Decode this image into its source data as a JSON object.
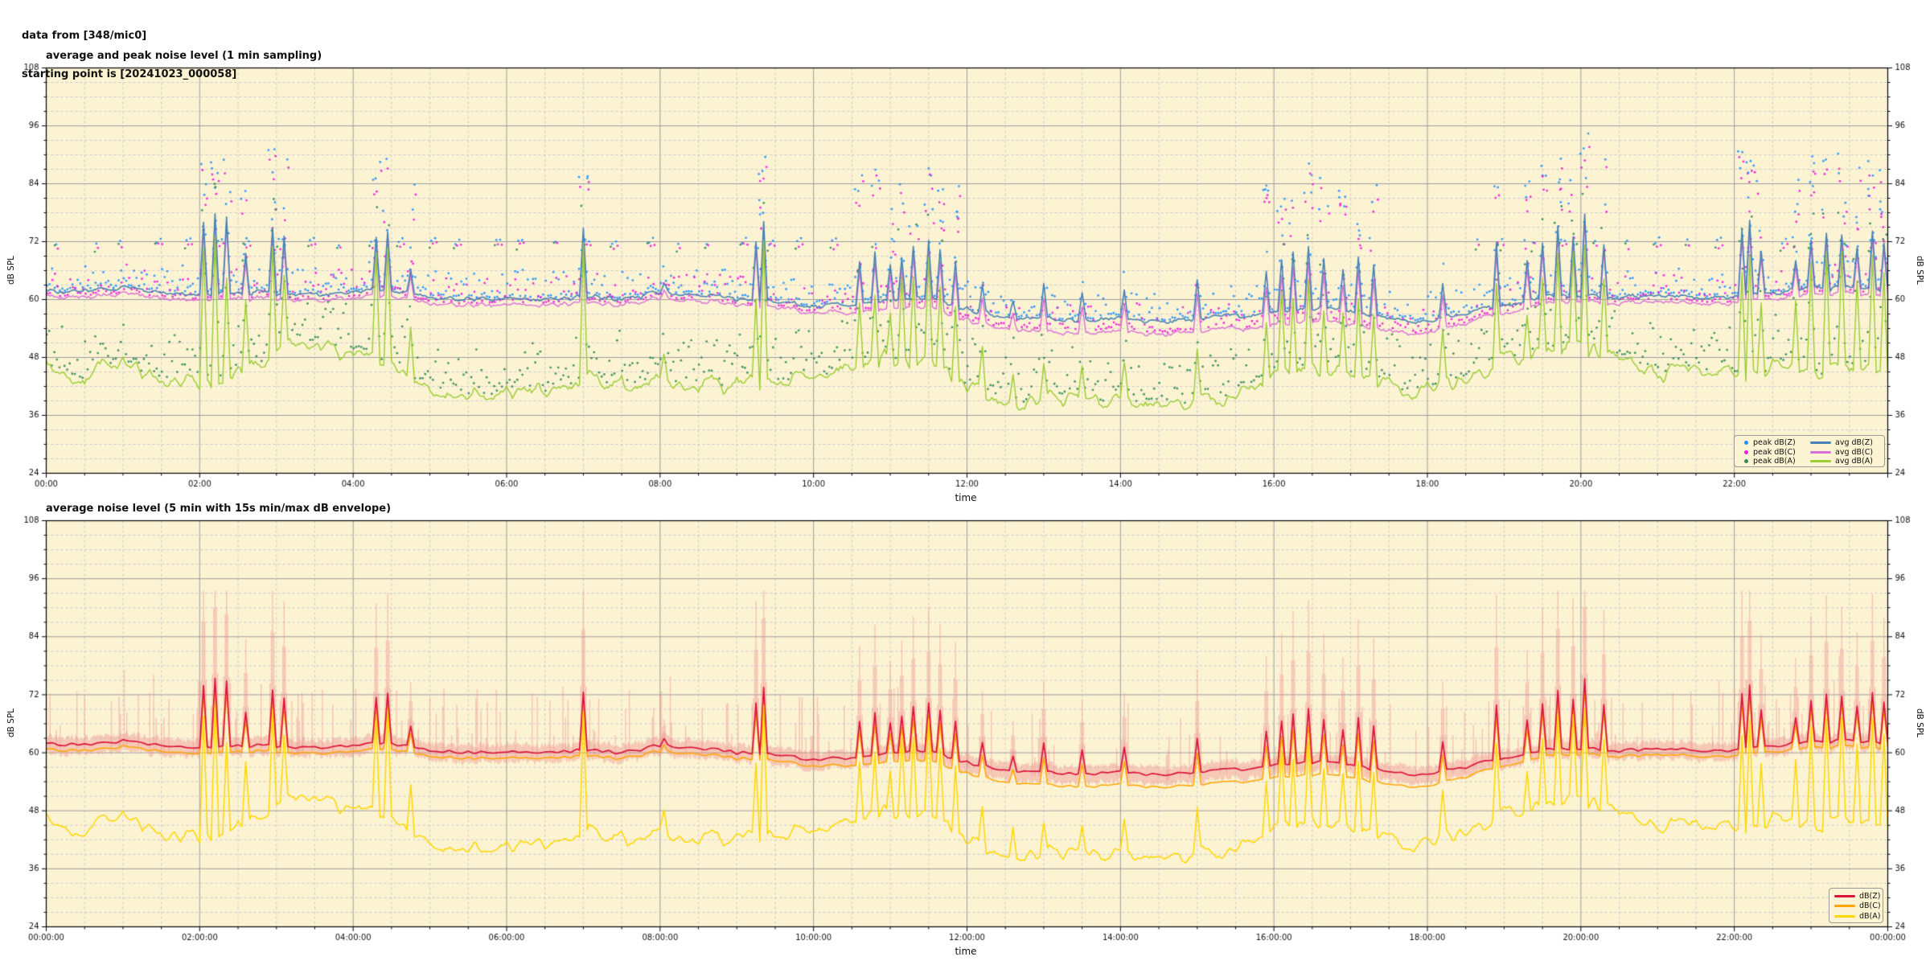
{
  "header": {
    "line1": "data from [348/mic0]",
    "line2": "starting point is [20241023_000058]"
  },
  "colors": {
    "figure_background": "#ffffff",
    "plot_background": "#fcf3d3",
    "grid_major": "#9e9e9e",
    "grid_minor": "#cbcbcb",
    "spine": "#000000",
    "tick_text": "#111111",
    "envelope": "#ee9090"
  },
  "chart_data": [
    {
      "type": "line+scatter",
      "title": "average and peak noise level (1 min sampling)",
      "xlabel": "time",
      "ylabel": "dB SPL",
      "ylim": [
        24,
        108
      ],
      "ytick_labels": [
        "108",
        "96",
        "84",
        "72",
        "60",
        "48",
        "36",
        "24"
      ],
      "ytick_major_step_db": 12,
      "ytick_minor_step_db": 3,
      "x_range_hours": [
        0,
        24
      ],
      "xtick_major_step_h": 2,
      "xtick_minor_step_h": 0.5,
      "xtick_labels": [
        "00:00",
        "02:00",
        "04:00",
        "06:00",
        "08:00",
        "10:00",
        "12:00",
        "14:00",
        "16:00",
        "18:00",
        "20:00",
        "22:00"
      ],
      "grid": "major solid, minor dashed",
      "legend_position": "lower right, 2 columns",
      "series": [
        {
          "name": "peak dB(Z)",
          "type": "scatter",
          "color": "#1e90ff"
        },
        {
          "name": "peak dB(C)",
          "type": "scatter",
          "color": "#f01ae0"
        },
        {
          "name": "peak dB(A)",
          "type": "scatter",
          "color": "#2e8b57"
        },
        {
          "name": "avg dB(Z)",
          "type": "line",
          "color": "#4682b4"
        },
        {
          "name": "avg dB(C)",
          "type": "line",
          "color": "#da70d6"
        },
        {
          "name": "avg dB(A)",
          "type": "line",
          "color": "#9acd32"
        }
      ],
      "sampling_note": "dense 1-min series; values below are 30-min baseline estimates read from gridlines plus discrete spike events",
      "baselines": {
        "t_step_h": 0.5,
        "avg_dbz": [
          62.0,
          61.5,
          62.5,
          61.5,
          61.0,
          61.5,
          61.5,
          61.0,
          61.5,
          62.0,
          60.5,
          60.0,
          60.0,
          60.2,
          60.5,
          60.0,
          61.5,
          61.0,
          60.0,
          59.5,
          58.5,
          59.0,
          60.0,
          60.5,
          58.0,
          56.5,
          56.0,
          55.5,
          56.0,
          55.5,
          56.0,
          56.5,
          57.5,
          58.0,
          57.5,
          56.0,
          55.5,
          57.0,
          59.0,
          60.5,
          61.0,
          60.5,
          60.8,
          60.5,
          60.5,
          61.5,
          62.0,
          62.5,
          62.0
        ],
        "avg_dbc": [
          60.8,
          60.3,
          61.3,
          60.3,
          59.8,
          60.3,
          60.3,
          59.8,
          60.3,
          60.8,
          59.3,
          58.8,
          58.8,
          59.0,
          59.3,
          58.8,
          60.3,
          59.8,
          58.8,
          58.3,
          57.2,
          57.4,
          58.2,
          58.5,
          55.8,
          54.0,
          53.4,
          52.9,
          53.4,
          52.9,
          53.4,
          53.9,
          54.9,
          55.4,
          54.9,
          53.4,
          53.0,
          55.0,
          57.4,
          59.2,
          59.8,
          59.3,
          59.6,
          59.3,
          59.3,
          60.3,
          60.8,
          61.3,
          60.8
        ],
        "avg_dba": [
          46,
          44,
          47,
          43,
          42,
          44,
          50,
          51,
          47,
          48,
          41,
          40.5,
          40.5,
          41,
          44,
          42,
          43,
          42.5,
          42,
          43,
          44,
          46,
          48,
          47,
          42,
          39.5,
          39,
          38.5,
          39,
          38.5,
          39,
          40,
          44,
          45,
          44,
          42,
          41,
          44,
          47,
          49,
          50,
          47,
          45,
          45,
          44,
          46,
          45,
          46,
          45
        ]
      },
      "spikes": {
        "format": [
          "t_hours",
          "peak_dbz",
          "peak_dba"
        ],
        "events": [
          [
            2.05,
            76,
            70
          ],
          [
            2.2,
            78,
            74
          ],
          [
            2.35,
            77,
            64
          ],
          [
            2.6,
            70,
            60
          ],
          [
            2.95,
            75,
            72
          ],
          [
            3.1,
            73,
            65
          ],
          [
            4.3,
            73,
            70
          ],
          [
            4.45,
            74,
            72
          ],
          [
            4.75,
            66,
            56
          ],
          [
            7.0,
            75,
            73
          ],
          [
            8.05,
            63,
            48
          ],
          [
            9.25,
            72,
            60
          ],
          [
            9.35,
            76,
            74
          ],
          [
            10.6,
            68,
            60
          ],
          [
            10.8,
            70,
            62
          ],
          [
            11.0,
            67,
            58
          ],
          [
            11.15,
            69,
            64
          ],
          [
            11.3,
            71,
            66
          ],
          [
            11.5,
            72,
            68
          ],
          [
            11.65,
            70,
            62
          ],
          [
            11.85,
            68,
            60
          ],
          [
            12.2,
            63,
            50
          ],
          [
            12.6,
            60,
            46
          ],
          [
            13.0,
            63,
            45
          ],
          [
            13.5,
            61,
            44
          ],
          [
            14.05,
            62,
            46
          ],
          [
            15.0,
            64,
            48
          ],
          [
            15.9,
            66,
            56
          ],
          [
            16.1,
            68,
            60
          ],
          [
            16.25,
            70,
            62
          ],
          [
            16.45,
            71,
            63
          ],
          [
            16.65,
            68,
            58
          ],
          [
            16.9,
            66,
            55
          ],
          [
            17.1,
            69,
            60
          ],
          [
            17.3,
            67,
            57
          ],
          [
            18.2,
            63,
            52
          ],
          [
            18.9,
            72,
            62
          ],
          [
            19.3,
            68,
            58
          ],
          [
            19.5,
            72,
            65
          ],
          [
            19.7,
            75,
            70
          ],
          [
            19.9,
            73,
            68
          ],
          [
            20.05,
            78,
            72
          ],
          [
            20.3,
            72,
            64
          ],
          [
            22.1,
            74,
            66
          ],
          [
            22.2,
            76,
            70
          ],
          [
            22.35,
            70,
            60
          ],
          [
            22.8,
            68,
            60
          ],
          [
            23.0,
            72,
            66
          ],
          [
            23.2,
            74,
            70
          ],
          [
            23.4,
            73,
            68
          ],
          [
            23.6,
            71,
            64
          ],
          [
            23.8,
            74,
            69
          ],
          [
            23.95,
            72,
            66
          ]
        ]
      },
      "peak_scatter": {
        "max_db": 96,
        "quiet_band_level_db": 71.5,
        "quiet_band_interval_h": 0.4,
        "note": "peak dots sit 1-6 dB above avg lines; periodic dot clusters near 71-72 dB outside 10:30-18:30; spike events carry extra dots up to ~96 dB"
      }
    },
    {
      "type": "line+envelope",
      "title": "average noise level (5 min with 15s min/max dB envelope)",
      "xlabel": "time",
      "ylabel": "dB SPL",
      "ylim": [
        24,
        108
      ],
      "ytick_labels": [
        "108",
        "96",
        "84",
        "72",
        "60",
        "48",
        "36",
        "24"
      ],
      "ytick_major_step_db": 12,
      "ytick_minor_step_db": 3,
      "x_range_hours": [
        0,
        24
      ],
      "xtick_major_step_h": 2,
      "xtick_minor_step_h": 0.5,
      "xtick_labels": [
        "00:00:00",
        "02:00:00",
        "04:00:00",
        "06:00:00",
        "08:00:00",
        "10:00:00",
        "12:00:00",
        "14:00:00",
        "16:00:00",
        "18:00:00",
        "20:00:00",
        "22:00:00",
        "00:00:00"
      ],
      "legend_position": "lower right, 1 column",
      "series": [
        {
          "name": "dB(Z)",
          "type": "line",
          "color": "#dc143c"
        },
        {
          "name": "dB(C)",
          "type": "line",
          "color": "#ffa500"
        },
        {
          "name": "dB(A)",
          "type": "line",
          "color": "#ffd700"
        }
      ],
      "envelope": {
        "applies_to": "dB(Z)",
        "color": "#ee9090",
        "alpha": 0.42,
        "max_excursion_db": 93.5
      },
      "note": "lines are 5-min smoothed versions of chart 1 baselines/spikes; dB(C) tracks ~1-2.5 dB under dB(Z); dB(A) runs 36-50 dB"
    }
  ]
}
